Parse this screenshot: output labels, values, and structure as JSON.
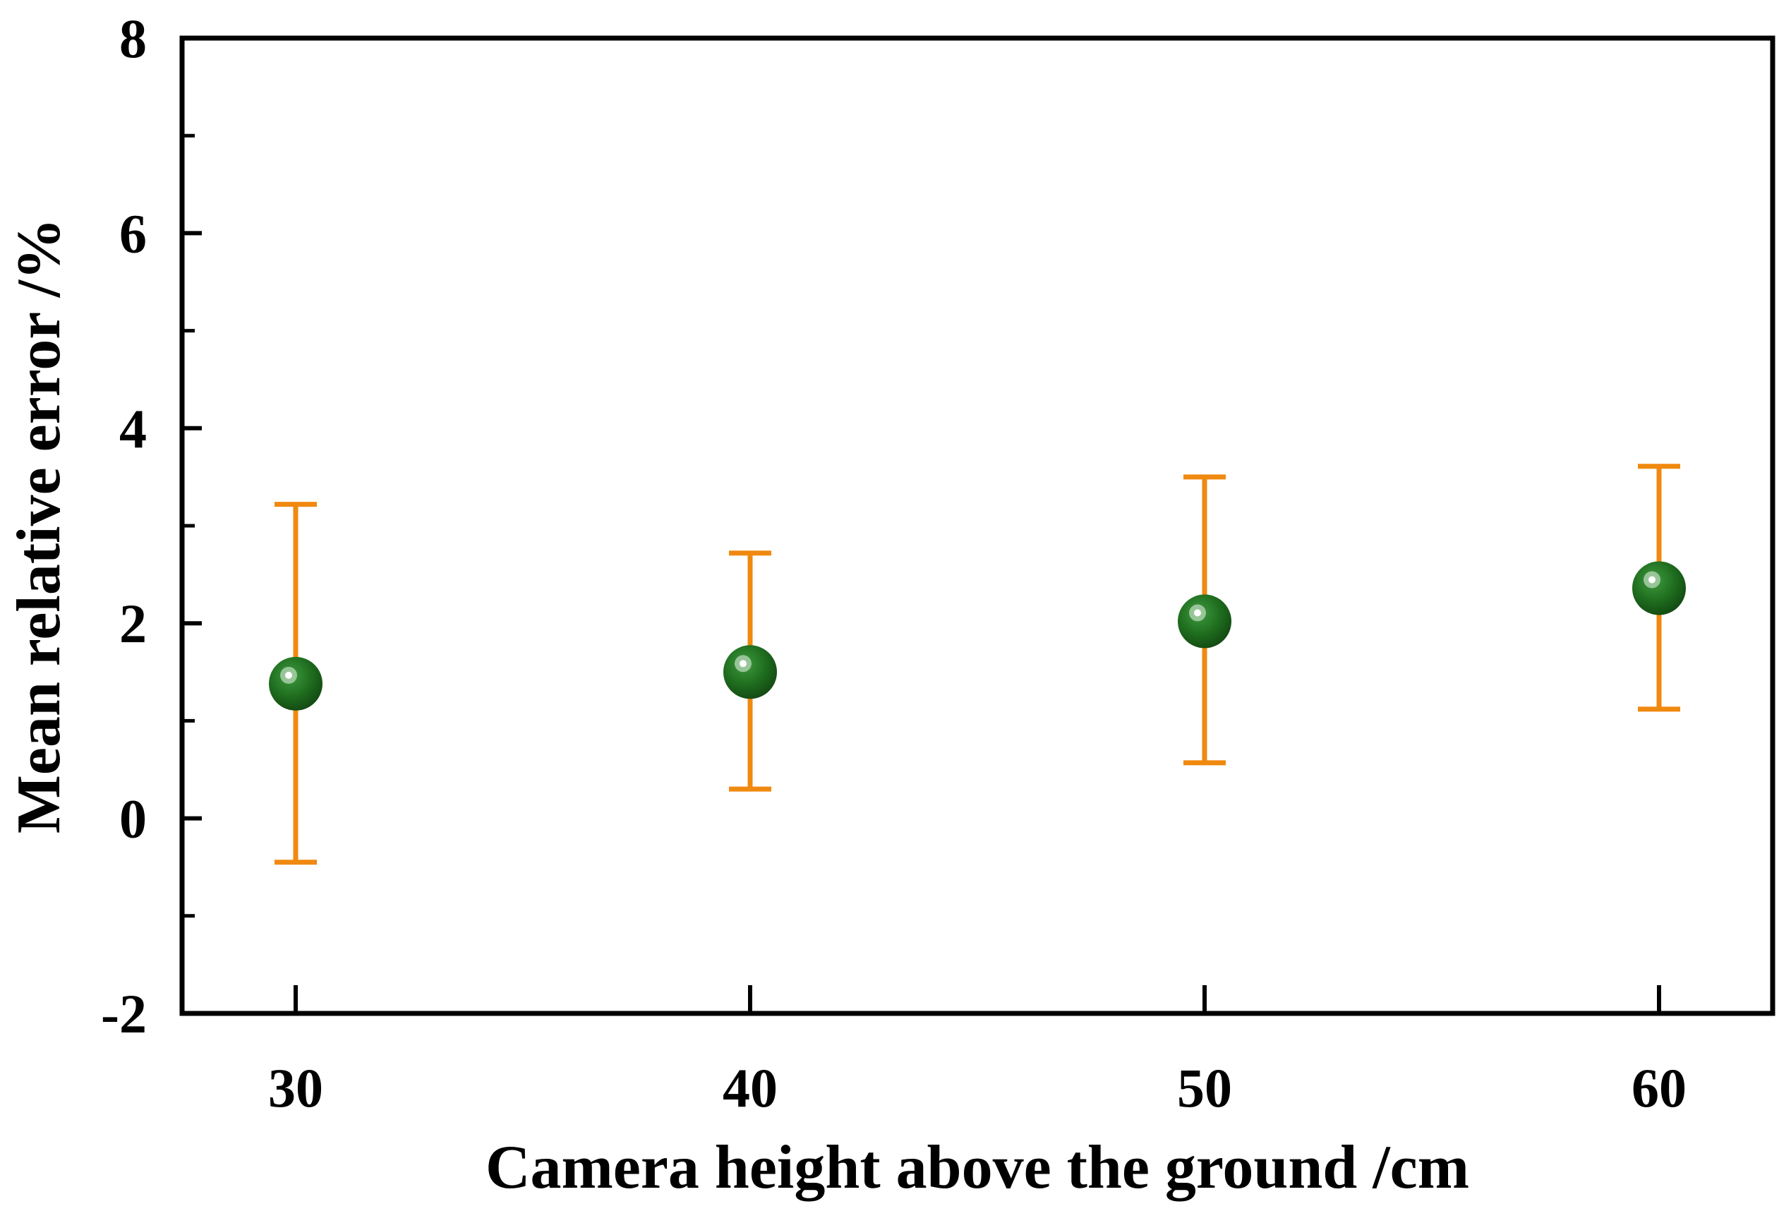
{
  "chart_data": {
    "type": "scatter",
    "title": "",
    "xlabel": "Camera height above the ground /cm",
    "ylabel": "Mean relative error /%",
    "xlim": [
      27.5,
      62.5
    ],
    "ylim": [
      -2,
      8
    ],
    "x_ticks": [
      30,
      40,
      50,
      60
    ],
    "x_tick_labels": [
      "30",
      "40",
      "50",
      "60"
    ],
    "y_ticks": [
      -2,
      0,
      2,
      4,
      6,
      8
    ],
    "y_tick_labels": [
      "-2",
      "0",
      "2",
      "4",
      "6",
      "8"
    ],
    "y_minor_ticks": [
      -1,
      1,
      3,
      5,
      7
    ],
    "grid": false,
    "legend": "none",
    "series": [
      {
        "x": [
          30,
          40,
          50,
          60
        ],
        "y": [
          1.38,
          1.5,
          2.02,
          2.36
        ],
        "error_low": [
          -0.45,
          0.3,
          0.57,
          1.12
        ],
        "error_high": [
          3.22,
          2.72,
          3.5,
          3.61
        ]
      }
    ]
  },
  "colors": {
    "marker": "#1e6b1e",
    "error_bar": "#f0890f",
    "axis": "#000000"
  }
}
